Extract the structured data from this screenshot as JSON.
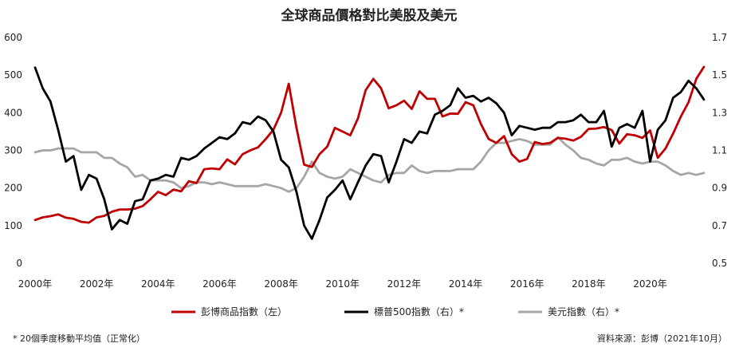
{
  "chart_data": {
    "type": "line",
    "title": "全球商品價格對比美股及美元",
    "xlabel": "",
    "ylabel_left": "",
    "ylabel_right": "",
    "x_ticks": [
      "2000年",
      "2002年",
      "2004年",
      "2006年",
      "2008年",
      "2010年",
      "2012年",
      "2014年",
      "2016年",
      "2018年",
      "2020年"
    ],
    "xlim": [
      2000,
      2021.75
    ],
    "y_left_ticks": [
      "0",
      "100",
      "200",
      "300",
      "400",
      "500",
      "600"
    ],
    "ylim_left": [
      0,
      600
    ],
    "y_right_ticks": [
      "0.5",
      "0.7",
      "0.9",
      "1.1",
      "1.3",
      "1.5",
      "1.7"
    ],
    "ylim_right": [
      0.5,
      1.7
    ],
    "grid": false,
    "legend_position": "bottom",
    "series": [
      {
        "name": "彭博商品指數（左）",
        "axis": "left",
        "color": "#c00000",
        "x": [
          2000.0,
          2000.25,
          2000.5,
          2000.75,
          2001.0,
          2001.25,
          2001.5,
          2001.75,
          2002.0,
          2002.25,
          2002.5,
          2002.75,
          2003.0,
          2003.25,
          2003.5,
          2003.75,
          2004.0,
          2004.25,
          2004.5,
          2004.75,
          2005.0,
          2005.25,
          2005.5,
          2005.75,
          2006.0,
          2006.25,
          2006.5,
          2006.75,
          2007.0,
          2007.25,
          2007.5,
          2007.75,
          2008.0,
          2008.25,
          2008.5,
          2008.75,
          2009.0,
          2009.25,
          2009.5,
          2009.75,
          2010.0,
          2010.25,
          2010.5,
          2010.75,
          2011.0,
          2011.25,
          2011.5,
          2011.75,
          2012.0,
          2012.25,
          2012.5,
          2012.75,
          2013.0,
          2013.25,
          2013.5,
          2013.75,
          2014.0,
          2014.25,
          2014.5,
          2014.75,
          2015.0,
          2015.25,
          2015.5,
          2015.75,
          2016.0,
          2016.25,
          2016.5,
          2016.75,
          2017.0,
          2017.25,
          2017.5,
          2017.75,
          2018.0,
          2018.25,
          2018.5,
          2018.75,
          2019.0,
          2019.25,
          2019.5,
          2019.75,
          2020.0,
          2020.25,
          2020.5,
          2020.75,
          2021.0,
          2021.25,
          2021.5,
          2021.75
        ],
        "values": [
          115,
          122,
          125,
          130,
          121,
          118,
          110,
          108,
          122,
          126,
          137,
          143,
          143,
          145,
          152,
          170,
          190,
          181,
          196,
          191,
          218,
          213,
          250,
          252,
          250,
          276,
          263,
          290,
          300,
          308,
          330,
          355,
          400,
          477,
          360,
          262,
          256,
          290,
          310,
          360,
          350,
          340,
          385,
          460,
          490,
          465,
          412,
          420,
          432,
          410,
          457,
          437,
          437,
          390,
          398,
          397,
          428,
          420,
          370,
          330,
          320,
          338,
          290,
          270,
          277,
          322,
          317,
          320,
          333,
          331,
          326,
          336,
          357,
          358,
          362,
          354,
          318,
          343,
          340,
          333,
          353,
          280,
          305,
          345,
          390,
          428,
          490,
          522
        ]
      },
      {
        "name": "標普500指數（右）*",
        "axis": "right",
        "color": "#000000",
        "x": [
          2000.0,
          2000.25,
          2000.5,
          2000.75,
          2001.0,
          2001.25,
          2001.5,
          2001.75,
          2002.0,
          2002.25,
          2002.5,
          2002.75,
          2003.0,
          2003.25,
          2003.5,
          2003.75,
          2004.0,
          2004.25,
          2004.5,
          2004.75,
          2005.0,
          2005.25,
          2005.5,
          2005.75,
          2006.0,
          2006.25,
          2006.5,
          2006.75,
          2007.0,
          2007.25,
          2007.5,
          2007.75,
          2008.0,
          2008.25,
          2008.5,
          2008.75,
          2009.0,
          2009.25,
          2009.5,
          2009.75,
          2010.0,
          2010.25,
          2010.5,
          2010.75,
          2011.0,
          2011.25,
          2011.5,
          2011.75,
          2012.0,
          2012.25,
          2012.5,
          2012.75,
          2013.0,
          2013.25,
          2013.5,
          2013.75,
          2014.0,
          2014.25,
          2014.5,
          2014.75,
          2015.0,
          2015.25,
          2015.5,
          2015.75,
          2016.0,
          2016.25,
          2016.5,
          2016.75,
          2017.0,
          2017.25,
          2017.5,
          2017.75,
          2018.0,
          2018.25,
          2018.5,
          2018.75,
          2019.0,
          2019.25,
          2019.5,
          2019.75,
          2020.0,
          2020.25,
          2020.5,
          2020.75,
          2021.0,
          2021.25,
          2021.5,
          2021.75
        ],
        "values": [
          1.54,
          1.43,
          1.36,
          1.21,
          1.04,
          1.07,
          0.89,
          0.97,
          0.95,
          0.84,
          0.68,
          0.73,
          0.71,
          0.83,
          0.84,
          0.94,
          0.95,
          0.97,
          0.96,
          1.06,
          1.05,
          1.07,
          1.11,
          1.14,
          1.17,
          1.16,
          1.19,
          1.25,
          1.24,
          1.28,
          1.26,
          1.2,
          1.05,
          1.01,
          0.88,
          0.7,
          0.63,
          0.73,
          0.85,
          0.89,
          0.94,
          0.84,
          0.93,
          1.02,
          1.08,
          1.07,
          0.93,
          1.04,
          1.16,
          1.14,
          1.2,
          1.19,
          1.29,
          1.31,
          1.34,
          1.43,
          1.38,
          1.39,
          1.36,
          1.38,
          1.35,
          1.3,
          1.18,
          1.23,
          1.22,
          1.21,
          1.22,
          1.22,
          1.25,
          1.25,
          1.26,
          1.29,
          1.25,
          1.25,
          1.31,
          1.12,
          1.22,
          1.24,
          1.22,
          1.31,
          1.04,
          1.21,
          1.26,
          1.38,
          1.41,
          1.47,
          1.43,
          1.37
        ]
      },
      {
        "name": "美元指數（右）*",
        "axis": "right",
        "color": "#a6a6a6",
        "x": [
          2000.0,
          2000.25,
          2000.5,
          2000.75,
          2001.0,
          2001.25,
          2001.5,
          2001.75,
          2002.0,
          2002.25,
          2002.5,
          2002.75,
          2003.0,
          2003.25,
          2003.5,
          2003.75,
          2004.0,
          2004.25,
          2004.5,
          2004.75,
          2005.0,
          2005.25,
          2005.5,
          2005.75,
          2006.0,
          2006.25,
          2006.5,
          2006.75,
          2007.0,
          2007.25,
          2007.5,
          2007.75,
          2008.0,
          2008.25,
          2008.5,
          2008.75,
          2009.0,
          2009.25,
          2009.5,
          2009.75,
          2010.0,
          2010.25,
          2010.5,
          2010.75,
          2011.0,
          2011.25,
          2011.5,
          2011.75,
          2012.0,
          2012.25,
          2012.5,
          2012.75,
          2013.0,
          2013.25,
          2013.5,
          2013.75,
          2014.0,
          2014.25,
          2014.5,
          2014.75,
          2015.0,
          2015.25,
          2015.5,
          2015.75,
          2016.0,
          2016.25,
          2016.5,
          2016.75,
          2017.0,
          2017.25,
          2017.5,
          2017.75,
          2018.0,
          2018.25,
          2018.5,
          2018.75,
          2019.0,
          2019.25,
          2019.5,
          2019.75,
          2020.0,
          2020.25,
          2020.5,
          2020.75,
          2021.0,
          2021.25,
          2021.5,
          2021.75
        ],
        "values": [
          1.09,
          1.1,
          1.1,
          1.11,
          1.11,
          1.11,
          1.09,
          1.09,
          1.09,
          1.06,
          1.06,
          1.03,
          1.01,
          0.96,
          0.97,
          0.94,
          0.94,
          0.94,
          0.93,
          0.9,
          0.91,
          0.93,
          0.93,
          0.92,
          0.93,
          0.92,
          0.91,
          0.91,
          0.91,
          0.91,
          0.92,
          0.91,
          0.9,
          0.88,
          0.9,
          0.96,
          1.04,
          0.98,
          0.96,
          0.95,
          0.96,
          1.0,
          0.98,
          0.96,
          0.94,
          0.93,
          0.97,
          0.98,
          0.98,
          1.02,
          0.99,
          0.98,
          0.99,
          0.99,
          0.99,
          1.0,
          1.0,
          1.0,
          1.04,
          1.1,
          1.14,
          1.14,
          1.15,
          1.16,
          1.15,
          1.13,
          1.13,
          1.13,
          1.17,
          1.13,
          1.1,
          1.06,
          1.05,
          1.03,
          1.02,
          1.05,
          1.05,
          1.06,
          1.04,
          1.03,
          1.04,
          1.04,
          1.02,
          0.99,
          0.97,
          0.98,
          0.97,
          0.98
        ]
      }
    ]
  },
  "footnote": "* 20個季度移動平均值（正常化）",
  "source": "資料來源：彭博（2021年10月）"
}
